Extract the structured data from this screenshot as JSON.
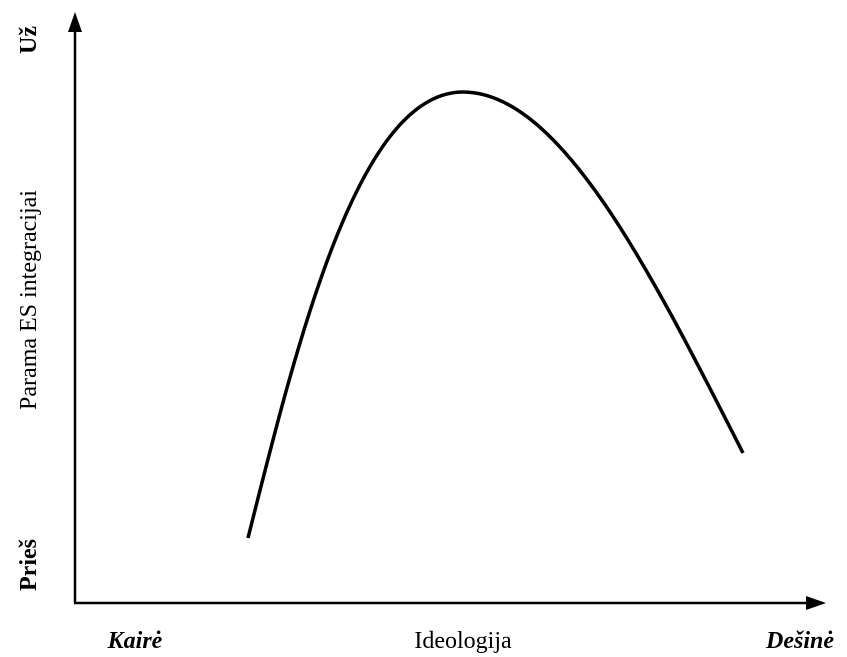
{
  "y_axis": {
    "label": "Parama ES integracijai",
    "top": "Už",
    "bottom": "Prieš"
  },
  "x_axis": {
    "label": "Ideologija",
    "left": "Kairė",
    "right": "Dešinė"
  }
}
